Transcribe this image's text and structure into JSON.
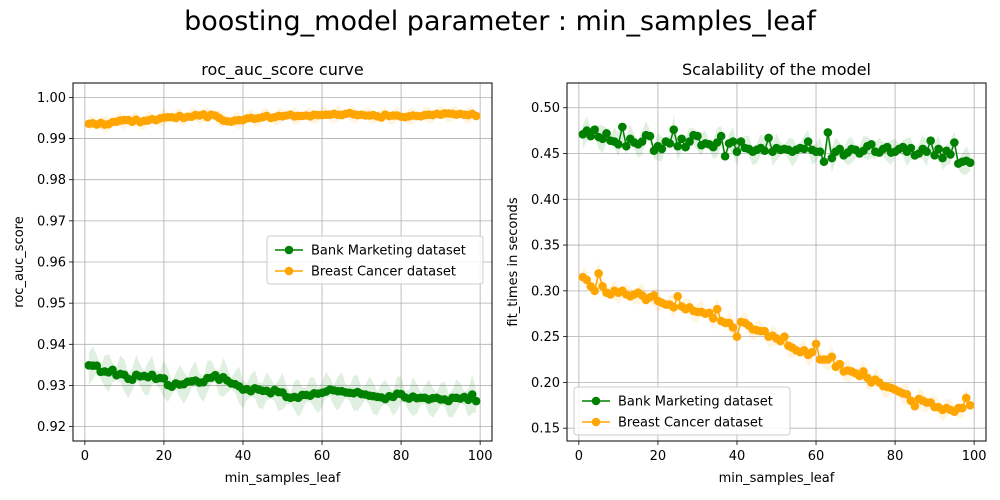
{
  "figure": {
    "title": "boosting_model parameter : min_samples_leaf"
  },
  "colors": {
    "bank": "#008000",
    "breast": "#FFA500",
    "grid": "#b0b0b0"
  },
  "chart_data": [
    {
      "type": "line",
      "title": "roc_auc_score curve",
      "xlabel": "min_samples_leaf",
      "ylabel": "roc_auc_score",
      "xlim": [
        -3,
        103
      ],
      "ylim": [
        0.9165,
        1.0035
      ],
      "xticks": [
        0,
        20,
        40,
        60,
        80,
        100
      ],
      "yticks": [
        0.92,
        0.93,
        0.94,
        0.95,
        0.96,
        0.97,
        0.98,
        0.99,
        1.0
      ],
      "ytick_labels": [
        "0.92",
        "0.93",
        "0.94",
        "0.95",
        "0.96",
        "0.97",
        "0.98",
        "0.99",
        "1.00"
      ],
      "grid": true,
      "legend": "center-right",
      "x": [
        1,
        2,
        3,
        4,
        5,
        6,
        7,
        8,
        9,
        10,
        11,
        12,
        13,
        14,
        15,
        16,
        17,
        18,
        19,
        20,
        21,
        22,
        23,
        24,
        25,
        26,
        27,
        28,
        29,
        30,
        31,
        32,
        33,
        34,
        35,
        36,
        37,
        38,
        39,
        40,
        41,
        42,
        43,
        44,
        45,
        46,
        47,
        48,
        49,
        50,
        51,
        52,
        53,
        54,
        55,
        56,
        57,
        58,
        59,
        60,
        61,
        62,
        63,
        64,
        65,
        66,
        67,
        68,
        69,
        70,
        71,
        72,
        73,
        74,
        75,
        76,
        77,
        78,
        79,
        80,
        81,
        82,
        83,
        84,
        85,
        86,
        87,
        88,
        89,
        90,
        91,
        92,
        93,
        94,
        95,
        96,
        97,
        98,
        99
      ],
      "series": [
        {
          "name": "Bank Marketing dataset",
          "color": "#008000",
          "values": [
            0.9349,
            0.9348,
            0.9348,
            0.9333,
            0.9334,
            0.9332,
            0.9338,
            0.9325,
            0.9328,
            0.9326,
            0.9316,
            0.9314,
            0.9326,
            0.9322,
            0.9323,
            0.932,
            0.9326,
            0.9316,
            0.9318,
            0.9317,
            0.9301,
            0.9297,
            0.9305,
            0.9302,
            0.9303,
            0.9309,
            0.931,
            0.9312,
            0.9307,
            0.9308,
            0.9318,
            0.9319,
            0.9325,
            0.9314,
            0.932,
            0.9312,
            0.9305,
            0.9303,
            0.9298,
            0.929,
            0.9291,
            0.9286,
            0.9293,
            0.929,
            0.9287,
            0.9287,
            0.9281,
            0.9289,
            0.9284,
            0.9283,
            0.9272,
            0.927,
            0.9272,
            0.927,
            0.9277,
            0.9277,
            0.9275,
            0.9281,
            0.928,
            0.9282,
            0.9285,
            0.929,
            0.9288,
            0.9286,
            0.9286,
            0.9283,
            0.9282,
            0.9281,
            0.9284,
            0.9279,
            0.9278,
            0.9275,
            0.9274,
            0.9272,
            0.9271,
            0.9267,
            0.9274,
            0.9272,
            0.928,
            0.9279,
            0.9271,
            0.9268,
            0.9273,
            0.9269,
            0.927,
            0.927,
            0.9266,
            0.9269,
            0.927,
            0.9266,
            0.9266,
            0.9262,
            0.927,
            0.927,
            0.9268,
            0.9272,
            0.9265,
            0.9278,
            0.9262
          ],
          "band": 0.003
        },
        {
          "name": "Breast Cancer dataset",
          "color": "#FFA500",
          "values": [
            0.9936,
            0.9937,
            0.9934,
            0.9938,
            0.9934,
            0.9935,
            0.994,
            0.9941,
            0.9944,
            0.9945,
            0.9945,
            0.9941,
            0.9946,
            0.994,
            0.9943,
            0.9944,
            0.9947,
            0.9945,
            0.9949,
            0.9951,
            0.9952,
            0.9952,
            0.995,
            0.9955,
            0.995,
            0.9953,
            0.9953,
            0.9957,
            0.9956,
            0.9959,
            0.9952,
            0.9958,
            0.9956,
            0.995,
            0.9944,
            0.9942,
            0.9941,
            0.9944,
            0.9945,
            0.9945,
            0.9949,
            0.995,
            0.9948,
            0.995,
            0.9952,
            0.9955,
            0.995,
            0.9952,
            0.9955,
            0.9954,
            0.9956,
            0.9958,
            0.9954,
            0.9955,
            0.9955,
            0.9956,
            0.9954,
            0.9958,
            0.9957,
            0.9957,
            0.9958,
            0.9958,
            0.996,
            0.9958,
            0.9957,
            0.996,
            0.9962,
            0.9959,
            0.9957,
            0.9958,
            0.9956,
            0.9956,
            0.9957,
            0.9954,
            0.9951,
            0.9958,
            0.9955,
            0.9956,
            0.9956,
            0.9953,
            0.9952,
            0.9954,
            0.9956,
            0.9955,
            0.9954,
            0.9957,
            0.9958,
            0.9957,
            0.996,
            0.9958,
            0.9961,
            0.9961,
            0.996,
            0.9958,
            0.996,
            0.9958,
            0.9957,
            0.996,
            0.9955
          ],
          "band": 0.0014
        }
      ]
    },
    {
      "type": "line",
      "title": "Scalability of the model",
      "xlabel": "min_samples_leaf",
      "ylabel": "fit_times in seconds",
      "xlim": [
        -3,
        103
      ],
      "ylim": [
        0.136,
        0.527
      ],
      "xticks": [
        0,
        20,
        40,
        60,
        80,
        100
      ],
      "yticks": [
        0.15,
        0.2,
        0.25,
        0.3,
        0.35,
        0.4,
        0.45,
        0.5
      ],
      "ytick_labels": [
        "0.15",
        "0.20",
        "0.25",
        "0.30",
        "0.35",
        "0.40",
        "0.45",
        "0.50"
      ],
      "grid": true,
      "legend": "lower-left",
      "x": [
        1,
        2,
        3,
        4,
        5,
        6,
        7,
        8,
        9,
        10,
        11,
        12,
        13,
        14,
        15,
        16,
        17,
        18,
        19,
        20,
        21,
        22,
        23,
        24,
        25,
        26,
        27,
        28,
        29,
        30,
        31,
        32,
        33,
        34,
        35,
        36,
        37,
        38,
        39,
        40,
        41,
        42,
        43,
        44,
        45,
        46,
        47,
        48,
        49,
        50,
        51,
        52,
        53,
        54,
        55,
        56,
        57,
        58,
        59,
        60,
        61,
        62,
        63,
        64,
        65,
        66,
        67,
        68,
        69,
        70,
        71,
        72,
        73,
        74,
        75,
        76,
        77,
        78,
        79,
        80,
        81,
        82,
        83,
        84,
        85,
        86,
        87,
        88,
        89,
        90,
        91,
        92,
        93,
        94,
        95,
        96,
        97,
        98,
        99
      ],
      "series": [
        {
          "name": "Bank Marketing dataset",
          "color": "#008000",
          "values": [
            0.471,
            0.475,
            0.469,
            0.476,
            0.468,
            0.466,
            0.472,
            0.464,
            0.463,
            0.46,
            0.479,
            0.458,
            0.466,
            0.462,
            0.46,
            0.463,
            0.47,
            0.469,
            0.453,
            0.458,
            0.455,
            0.463,
            0.461,
            0.476,
            0.458,
            0.466,
            0.457,
            0.463,
            0.47,
            0.469,
            0.459,
            0.461,
            0.46,
            0.457,
            0.462,
            0.469,
            0.447,
            0.461,
            0.463,
            0.452,
            0.463,
            0.456,
            0.455,
            0.452,
            0.454,
            0.456,
            0.453,
            0.467,
            0.452,
            0.456,
            0.454,
            0.455,
            0.454,
            0.452,
            0.454,
            0.456,
            0.455,
            0.463,
            0.454,
            0.452,
            0.452,
            0.441,
            0.473,
            0.445,
            0.452,
            0.455,
            0.448,
            0.451,
            0.455,
            0.454,
            0.45,
            0.453,
            0.458,
            0.46,
            0.452,
            0.451,
            0.455,
            0.457,
            0.451,
            0.452,
            0.455,
            0.457,
            0.452,
            0.456,
            0.448,
            0.45,
            0.455,
            0.452,
            0.464,
            0.448,
            0.455,
            0.445,
            0.453,
            0.449,
            0.462,
            0.439,
            0.441,
            0.442,
            0.44
          ],
          "band": 0.01
        },
        {
          "name": "Breast Cancer dataset",
          "color": "#FFA500",
          "values": [
            0.315,
            0.312,
            0.305,
            0.3,
            0.319,
            0.305,
            0.298,
            0.296,
            0.3,
            0.298,
            0.3,
            0.296,
            0.294,
            0.296,
            0.298,
            0.295,
            0.29,
            0.293,
            0.295,
            0.289,
            0.287,
            0.285,
            0.285,
            0.282,
            0.294,
            0.283,
            0.28,
            0.282,
            0.278,
            0.277,
            0.277,
            0.275,
            0.276,
            0.27,
            0.28,
            0.267,
            0.265,
            0.265,
            0.26,
            0.25,
            0.266,
            0.265,
            0.262,
            0.258,
            0.257,
            0.256,
            0.256,
            0.25,
            0.251,
            0.248,
            0.245,
            0.25,
            0.24,
            0.238,
            0.235,
            0.233,
            0.235,
            0.23,
            0.233,
            0.242,
            0.225,
            0.225,
            0.225,
            0.228,
            0.217,
            0.22,
            0.212,
            0.213,
            0.212,
            0.21,
            0.207,
            0.212,
            0.205,
            0.2,
            0.203,
            0.2,
            0.196,
            0.195,
            0.194,
            0.192,
            0.19,
            0.188,
            0.187,
            0.18,
            0.174,
            0.182,
            0.18,
            0.178,
            0.178,
            0.173,
            0.173,
            0.17,
            0.172,
            0.17,
            0.168,
            0.172,
            0.172,
            0.183,
            0.175
          ],
          "band": 0.008
        }
      ]
    }
  ]
}
